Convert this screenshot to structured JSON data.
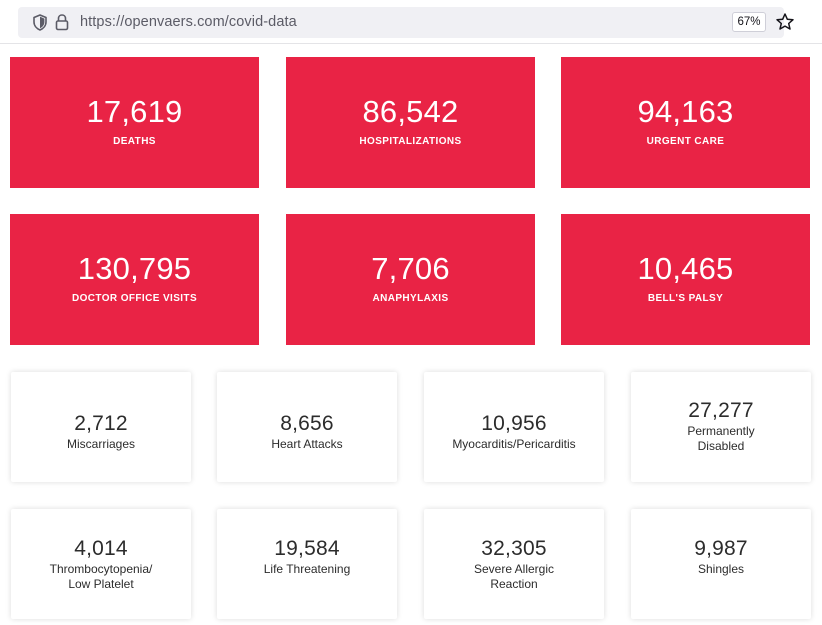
{
  "browser": {
    "url_host": "https://openvaers.com",
    "url_path": "/covid-data",
    "zoom": "67%"
  },
  "red_cards": [
    {
      "value": "17,619",
      "label": "DEATHS"
    },
    {
      "value": "86,542",
      "label": "HOSPITALIZATIONS"
    },
    {
      "value": "94,163",
      "label": "URGENT CARE"
    },
    {
      "value": "130,795",
      "label": "DOCTOR OFFICE VISITS"
    },
    {
      "value": "7,706",
      "label": "ANAPHYLAXIS"
    },
    {
      "value": "10,465",
      "label": "BELL'S PALSY"
    }
  ],
  "white_cards": [
    {
      "value": "2,712",
      "label_line1": "Miscarriages",
      "label_line2": ""
    },
    {
      "value": "8,656",
      "label_line1": "Heart Attacks",
      "label_line2": ""
    },
    {
      "value": "10,956",
      "label_line1": "Myocarditis/Pericarditis",
      "label_line2": ""
    },
    {
      "value": "27,277",
      "label_line1": "Permanently",
      "label_line2": "Disabled"
    },
    {
      "value": "4,014",
      "label_line1": "Thrombocytopenia/",
      "label_line2": "Low Platelet"
    },
    {
      "value": "19,584",
      "label_line1": "Life Threatening",
      "label_line2": ""
    },
    {
      "value": "32,305",
      "label_line1": "Severe Allergic",
      "label_line2": "Reaction"
    },
    {
      "value": "9,987",
      "label_line1": "Shingles",
      "label_line2": ""
    }
  ],
  "colors": {
    "card_red": "#e92345",
    "text_dark": "#2c2c2c"
  }
}
